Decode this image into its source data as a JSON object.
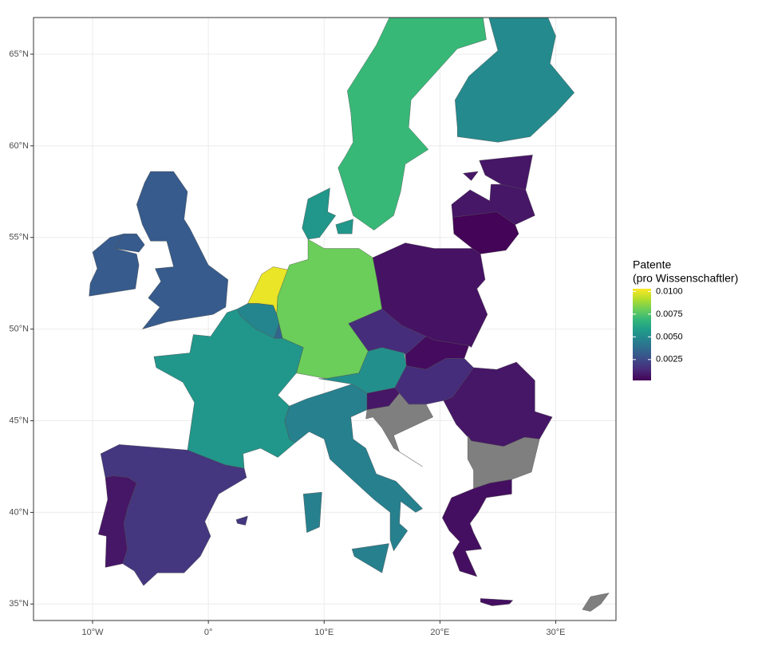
{
  "chart_data": {
    "type": "choropleth",
    "values": [
      0.01,
      0.008,
      0.007,
      0.0055,
      0.005,
      0.0055,
      0.0052,
      0.0046,
      0.0048,
      0.0035,
      0.0031,
      0.0031,
      0.0018,
      0.0008,
      0.0015,
      0.0007,
      0.0005,
      0.0015,
      0.0008,
      null,
      0.0008,
      null,
      0.0006,
      0.0008,
      0.0008,
      0.0003,
      null
    ],
    "xlim": [
      -15.1,
      35.2
    ],
    "ylim": [
      34.1,
      67.0
    ],
    "xticks": [
      {
        "value": -10,
        "label": "10°W"
      },
      {
        "value": 0,
        "label": "0°"
      },
      {
        "value": 10,
        "label": "10°E"
      },
      {
        "value": 20,
        "label": "20°E"
      },
      {
        "value": 30,
        "label": "30°E"
      }
    ],
    "yticks": [
      {
        "value": 35,
        "label": "35°N"
      },
      {
        "value": 40,
        "label": "40°N"
      },
      {
        "value": 45,
        "label": "45°N"
      },
      {
        "value": 50,
        "label": "50°N"
      },
      {
        "value": 55,
        "label": "55°N"
      },
      {
        "value": 60,
        "label": "60°N"
      },
      {
        "value": 65,
        "label": "65°N"
      }
    ],
    "grid": true,
    "legend_title": [
      "Patente",
      "(pro Wissenschaftler)"
    ],
    "color_lim": [
      0.0002,
      0.0103
    ],
    "color_ticks": [
      {
        "value": 0.01,
        "label": "0.0100"
      },
      0.0075,
      {
        "value": 0.005,
        "label": "0.0050"
      },
      0.0025
    ],
    "na_color": "#7f7f7f"
  }
}
